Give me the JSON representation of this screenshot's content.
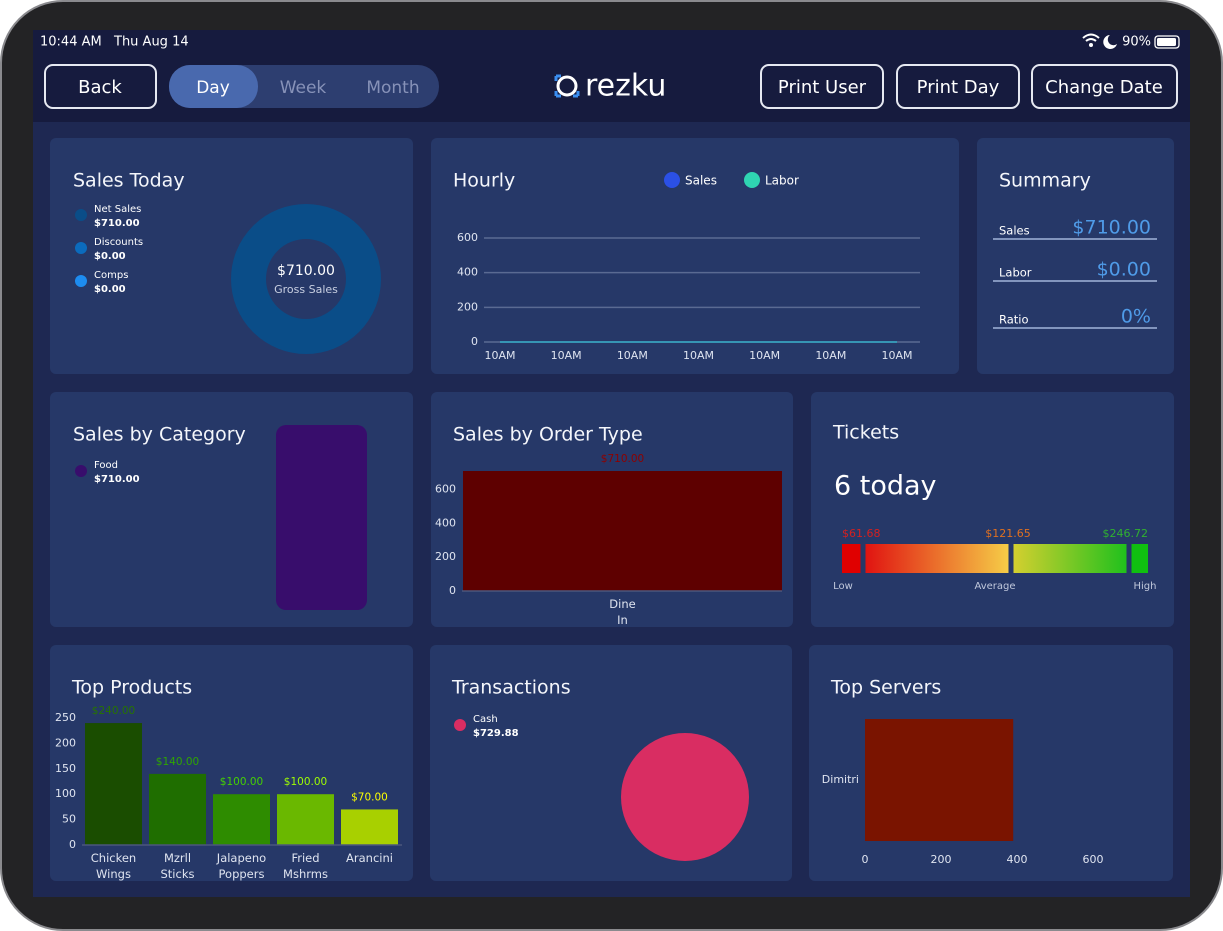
{
  "status_bar": {
    "time": "10:44 AM",
    "date": "Thu Aug 14",
    "battery": "90%"
  },
  "toolbar": {
    "back": "Back",
    "tabs": [
      "Day",
      "Week",
      "Month"
    ],
    "logo": "rezku",
    "buttons": [
      "Print User",
      "Print Day",
      "Change Date"
    ]
  },
  "summary": {
    "title": "Summary",
    "rows": [
      {
        "label": "Sales",
        "value": "$710.00"
      },
      {
        "label": "Labor",
        "value": "$0.00"
      },
      {
        "label": "Ratio",
        "value": "0%"
      }
    ]
  },
  "tickets": {
    "title": "Tickets",
    "count": "6 today",
    "gauge": {
      "values": [
        61.68,
        121.65,
        246.72
      ],
      "value_labels": [
        "$61.68",
        "$121.65",
        "$246.72"
      ],
      "labels": [
        "Low",
        "Average",
        "High"
      ]
    }
  },
  "chart_data": [
    {
      "type": "donut",
      "title": "Sales Today",
      "categories": [
        "Net Sales",
        "Discounts",
        "Comps"
      ],
      "values": [
        710,
        0,
        0
      ],
      "value_labels": [
        "$710.00",
        "$0.00",
        "$0.00"
      ],
      "colors": [
        "#0a4d88",
        "#0b6bbd",
        "#1d8cf0"
      ],
      "center_value": "$710.00",
      "center_label": "Gross Sales"
    },
    {
      "type": "line",
      "title": "Hourly",
      "categories": [
        "10AM",
        "10AM",
        "10AM",
        "10AM",
        "10AM",
        "10AM",
        "10AM"
      ],
      "series": [
        {
          "name": "Sales",
          "color": "#2b50e6",
          "values": [
            0,
            0,
            0,
            0,
            0,
            0,
            0
          ]
        },
        {
          "name": "Labor",
          "color": "#2fd4b2",
          "values": [
            0,
            0,
            0,
            0,
            0,
            0,
            0
          ]
        }
      ],
      "ylim": [
        0,
        600
      ],
      "yticks": [
        0,
        200,
        400,
        600
      ],
      "grid": true
    },
    {
      "type": "stack",
      "title": "Sales by Category",
      "categories": [
        "Food"
      ],
      "values": [
        710
      ],
      "value_labels": [
        "$710.00"
      ],
      "colors": [
        "#380d6c"
      ]
    },
    {
      "type": "bar",
      "title": "Sales by Order Type",
      "categories": [
        "Dine In"
      ],
      "values": [
        710
      ],
      "value_labels": [
        "$710.00"
      ],
      "colors": [
        "#5e0000"
      ],
      "ylim": [
        0,
        710
      ],
      "yticks": [
        0,
        200,
        400,
        600
      ]
    },
    {
      "type": "bar",
      "title": "Top Products",
      "categories": [
        "Chicken Wings",
        "Mzrll Sticks",
        "Jalapeno Poppers",
        "Fried Mshrms",
        "Arancini"
      ],
      "values": [
        240,
        140,
        100,
        100,
        70
      ],
      "value_labels": [
        "$240.00",
        "$140.00",
        "$100.00",
        "$100.00",
        "$70.00"
      ],
      "colors": [
        "#1a4d00",
        "#1f6e00",
        "#2e8c00",
        "#6ab800",
        "#a8d000"
      ],
      "ylim": [
        0,
        250
      ],
      "yticks": [
        0,
        50,
        100,
        150,
        200,
        250
      ]
    },
    {
      "type": "pie",
      "title": "Transactions",
      "categories": [
        "Cash"
      ],
      "values": [
        729.88
      ],
      "value_labels": [
        "$729.88"
      ],
      "colors": [
        "#d92d62"
      ]
    },
    {
      "type": "barh",
      "title": "Top Servers",
      "categories": [
        "Dimitri"
      ],
      "values": [
        390
      ],
      "colors": [
        "#7a1400"
      ],
      "xlim": [
        0,
        600
      ],
      "xticks": [
        0,
        200,
        400,
        600
      ]
    }
  ]
}
